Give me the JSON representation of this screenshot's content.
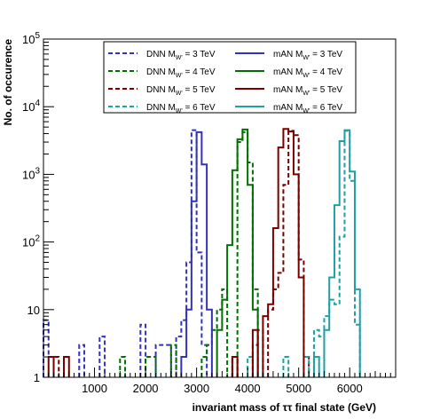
{
  "chart_data": {
    "type": "line",
    "xlabel": "invariant mass of ττ final state (GeV)",
    "ylabel": "No. of occurence",
    "xlim": [
      0,
      6900
    ],
    "ylim": [
      1,
      100000
    ],
    "yscale": "log",
    "x_ticks": [
      1000,
      2000,
      3000,
      4000,
      5000,
      6000
    ],
    "y_ticks": [
      {
        "value": 1,
        "base": "1",
        "exp": ""
      },
      {
        "value": 10,
        "base": "10",
        "exp": ""
      },
      {
        "value": 100,
        "base": "10",
        "exp": "2"
      },
      {
        "value": 1000,
        "base": "10",
        "exp": "3"
      },
      {
        "value": 10000,
        "base": "10",
        "exp": "4"
      },
      {
        "value": 100000,
        "base": "10",
        "exp": "5"
      }
    ],
    "grid": false,
    "legend_position": "top",
    "series": [
      {
        "name": "DNN M_W' = 3 TeV",
        "label": "DNN M",
        "label_sub": "W'",
        "label_tail": " = 3 TeV",
        "color": "#3333b8",
        "style": "dashed",
        "bins": [
          [
            0,
            100,
            7
          ],
          [
            100,
            200,
            2
          ],
          [
            700,
            800,
            3
          ],
          [
            1100,
            1200,
            4
          ],
          [
            1900,
            2000,
            6
          ],
          [
            2200,
            2300,
            3
          ],
          [
            2300,
            2400,
            3
          ],
          [
            2400,
            2500,
            3
          ],
          [
            2600,
            2700,
            4
          ],
          [
            2700,
            2800,
            7
          ],
          [
            2800,
            2900,
            50
          ],
          [
            2900,
            3000,
            4500
          ],
          [
            3000,
            3100,
            70
          ],
          [
            3100,
            3200,
            3
          ]
        ]
      },
      {
        "name": "DNN M_W' = 4 TeV",
        "label": "DNN M",
        "label_sub": "W'",
        "label_tail": " = 4 TeV",
        "color": "#007000",
        "style": "dashed",
        "bins": [
          [
            1500,
            1600,
            2
          ],
          [
            2000,
            2100,
            2
          ],
          [
            2100,
            2200,
            2
          ],
          [
            2500,
            2600,
            3
          ],
          [
            3100,
            3200,
            2
          ],
          [
            3200,
            3300,
            3
          ],
          [
            3300,
            3400,
            5
          ],
          [
            3400,
            3500,
            10
          ],
          [
            3500,
            3600,
            20
          ],
          [
            3800,
            3900,
            3000
          ],
          [
            3900,
            4000,
            4200
          ],
          [
            4000,
            4100,
            1500
          ],
          [
            4100,
            4200,
            20
          ]
        ]
      },
      {
        "name": "DNN M_W' = 5 TeV",
        "label": "DNN M",
        "label_sub": "W'",
        "label_tail": " = 5 TeV",
        "color": "#7a0000",
        "style": "dashed",
        "bins": [
          [
            200,
            300,
            2
          ],
          [
            3700,
            3800,
            2
          ],
          [
            4100,
            4200,
            3
          ],
          [
            4200,
            4300,
            5
          ],
          [
            4400,
            4500,
            10
          ],
          [
            4500,
            4600,
            20
          ],
          [
            4600,
            4700,
            35
          ],
          [
            4700,
            4800,
            700
          ],
          [
            4800,
            4900,
            4400
          ],
          [
            4900,
            5000,
            3800
          ],
          [
            5000,
            5100,
            55
          ],
          [
            5100,
            5200,
            2
          ]
        ]
      },
      {
        "name": "DNN M_W' = 6 TeV",
        "label": "DNN M",
        "label_sub": "W'",
        "label_tail": " = 6 TeV",
        "color": "#20a0a0",
        "style": "dashed",
        "bins": [
          [
            4000,
            4100,
            2
          ],
          [
            4700,
            4800,
            2
          ],
          [
            5100,
            5200,
            2
          ],
          [
            5300,
            5400,
            5
          ],
          [
            5400,
            5500,
            4
          ],
          [
            5500,
            5600,
            8
          ],
          [
            5600,
            5700,
            14
          ],
          [
            5700,
            5800,
            12
          ],
          [
            5800,
            5900,
            120
          ],
          [
            5900,
            6000,
            4400
          ],
          [
            6000,
            6100,
            800
          ],
          [
            6100,
            6200,
            6
          ]
        ]
      },
      {
        "name": "mAN M_W' = 3 TeV",
        "label": "mAN M",
        "label_sub": "W'",
        "label_tail": " = 3 TeV",
        "color": "#3333b8",
        "style": "solid",
        "bins": [
          [
            2700,
            2800,
            2
          ],
          [
            2800,
            2900,
            10
          ],
          [
            2900,
            3000,
            400
          ],
          [
            3000,
            3100,
            4200
          ],
          [
            3100,
            3200,
            1400
          ],
          [
            3200,
            3300,
            10
          ]
        ]
      },
      {
        "name": "mAN M_W' = 4 TeV",
        "label": "mAN M",
        "label_sub": "W'",
        "label_tail": " = 4 TeV",
        "color": "#007000",
        "style": "solid",
        "bins": [
          [
            3400,
            3500,
            5
          ],
          [
            3500,
            3600,
            14
          ],
          [
            3600,
            3700,
            90
          ],
          [
            3700,
            3800,
            1150
          ],
          [
            3800,
            3900,
            3300
          ],
          [
            3900,
            4000,
            4600
          ],
          [
            4000,
            4100,
            700
          ],
          [
            4100,
            4200,
            10
          ]
        ]
      },
      {
        "name": "mAN M_W' = 5 TeV",
        "label": "mAN M",
        "label_sub": "W'",
        "label_tail": " = 5 TeV",
        "color": "#7a0000",
        "style": "solid",
        "bins": [
          [
            100,
            200,
            2
          ],
          [
            400,
            500,
            2
          ],
          [
            3700,
            3800,
            2
          ],
          [
            4100,
            4200,
            5
          ],
          [
            4300,
            4400,
            8
          ],
          [
            4400,
            4500,
            12
          ],
          [
            4500,
            4600,
            160
          ],
          [
            4600,
            4700,
            2500
          ],
          [
            4700,
            4800,
            4700
          ],
          [
            4800,
            4900,
            4300
          ],
          [
            4900,
            5000,
            1000
          ],
          [
            5000,
            5100,
            30
          ]
        ]
      },
      {
        "name": "mAN M_W' = 6 TeV",
        "label": "mAN M",
        "label_sub": "W'",
        "label_tail": " = 6 TeV",
        "color": "#20a0a0",
        "style": "solid",
        "bins": [
          [
            5300,
            5400,
            2
          ],
          [
            5500,
            5600,
            5
          ],
          [
            5600,
            5700,
            30
          ],
          [
            5700,
            5800,
            350
          ],
          [
            5800,
            5900,
            3100
          ],
          [
            5900,
            6000,
            4500
          ],
          [
            6000,
            6100,
            1100
          ],
          [
            6100,
            6200,
            20
          ]
        ]
      }
    ]
  }
}
